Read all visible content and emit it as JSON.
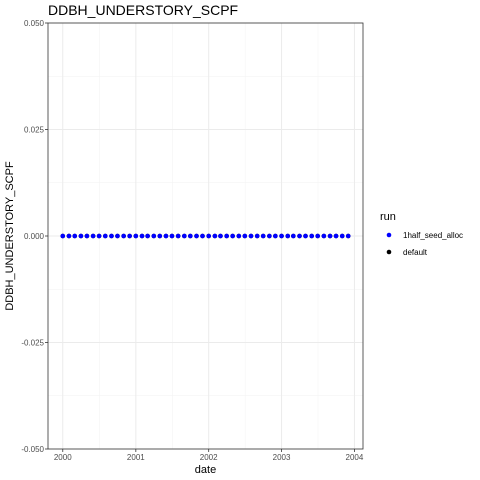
{
  "chart_data": {
    "type": "scatter",
    "title": "DDBH_UNDERSTORY_SCPF",
    "xlabel": "date",
    "ylabel": "DDBH_UNDERSTORY_SCPF",
    "x_ticks": [
      "2000",
      "2001",
      "2002",
      "2003",
      "2004"
    ],
    "x_tick_values": [
      "2000-01-01",
      "2001-01-01",
      "2002-01-01",
      "2003-01-01",
      "2004-01-01"
    ],
    "y_ticks": [
      "0.050",
      "0.025",
      "0.000",
      "-0.025",
      "-0.050"
    ],
    "xlim": [
      "1999-10-19",
      "2004-02-13"
    ],
    "ylim": [
      -0.05,
      0.05
    ],
    "grid": true,
    "legend": {
      "title": "run",
      "position": "right"
    },
    "series": [
      {
        "name": "1half_seed_alloc",
        "color": "#0000ff",
        "x": [
          "2000-01-01",
          "2000-02-01",
          "2000-03-01",
          "2000-04-01",
          "2000-05-01",
          "2000-06-01",
          "2000-07-01",
          "2000-08-01",
          "2000-09-01",
          "2000-10-01",
          "2000-11-01",
          "2000-12-01",
          "2001-01-01",
          "2001-02-01",
          "2001-03-01",
          "2001-04-01",
          "2001-05-01",
          "2001-06-01",
          "2001-07-01",
          "2001-08-01",
          "2001-09-01",
          "2001-10-01",
          "2001-11-01",
          "2001-12-01",
          "2002-01-01",
          "2002-02-01",
          "2002-03-01",
          "2002-04-01",
          "2002-05-01",
          "2002-06-01",
          "2002-07-01",
          "2002-08-01",
          "2002-09-01",
          "2002-10-01",
          "2002-11-01",
          "2002-12-01",
          "2003-01-01",
          "2003-02-01",
          "2003-03-01",
          "2003-04-01",
          "2003-05-01",
          "2003-06-01",
          "2003-07-01",
          "2003-08-01",
          "2003-09-01",
          "2003-10-01",
          "2003-11-01",
          "2003-12-01"
        ],
        "y": [
          0,
          0,
          0,
          0,
          0,
          0,
          0,
          0,
          0,
          0,
          0,
          0,
          0,
          0,
          0,
          0,
          0,
          0,
          0,
          0,
          0,
          0,
          0,
          0,
          0,
          0,
          0,
          0,
          0,
          0,
          0,
          0,
          0,
          0,
          0,
          0,
          0,
          0,
          0,
          0,
          0,
          0,
          0,
          0,
          0,
          0,
          0,
          0
        ]
      },
      {
        "name": "default",
        "color": "#000000",
        "x": [
          "2000-01-01",
          "2000-02-01",
          "2000-03-01",
          "2000-04-01",
          "2000-05-01",
          "2000-06-01",
          "2000-07-01",
          "2000-08-01",
          "2000-09-01",
          "2000-10-01",
          "2000-11-01",
          "2000-12-01",
          "2001-01-01",
          "2001-02-01",
          "2001-03-01",
          "2001-04-01",
          "2001-05-01",
          "2001-06-01",
          "2001-07-01",
          "2001-08-01",
          "2001-09-01",
          "2001-10-01",
          "2001-11-01",
          "2001-12-01",
          "2002-01-01",
          "2002-02-01",
          "2002-03-01",
          "2002-04-01",
          "2002-05-01",
          "2002-06-01",
          "2002-07-01",
          "2002-08-01",
          "2002-09-01",
          "2002-10-01",
          "2002-11-01",
          "2002-12-01",
          "2003-01-01",
          "2003-02-01",
          "2003-03-01",
          "2003-04-01",
          "2003-05-01",
          "2003-06-01",
          "2003-07-01",
          "2003-08-01",
          "2003-09-01",
          "2003-10-01",
          "2003-11-01",
          "2003-12-01"
        ],
        "y": [
          0,
          0,
          0,
          0,
          0,
          0,
          0,
          0,
          0,
          0,
          0,
          0,
          0,
          0,
          0,
          0,
          0,
          0,
          0,
          0,
          0,
          0,
          0,
          0,
          0,
          0,
          0,
          0,
          0,
          0,
          0,
          0,
          0,
          0,
          0,
          0,
          0,
          0,
          0,
          0,
          0,
          0,
          0,
          0,
          0,
          0,
          0,
          0
        ]
      }
    ]
  }
}
